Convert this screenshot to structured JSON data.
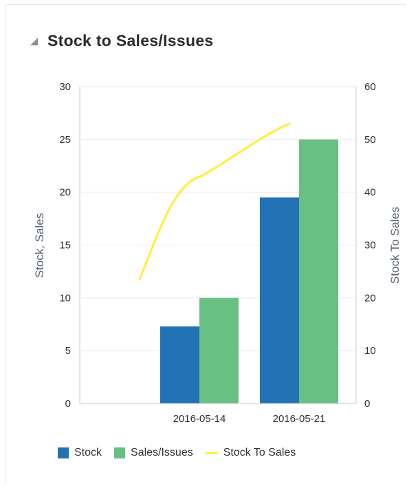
{
  "panel": {
    "title": "Stock to Sales/Issues"
  },
  "colors": {
    "stock": "#2272b5",
    "sales": "#68c082",
    "ratio": "#ffef3c",
    "grid": "#e3e6ea",
    "axis": "#c6cbd1"
  },
  "icons": {
    "collapse": "collapse-triangle-icon"
  },
  "chart_data": {
    "type": "bar",
    "title": "Stock to Sales/Issues",
    "categories": [
      "",
      "2016-05-14",
      "2016-05-21"
    ],
    "series": [
      {
        "name": "Stock",
        "axis": "left",
        "type": "bar",
        "values": [
          null,
          7.3,
          19.5
        ]
      },
      {
        "name": "Sales/Issues",
        "axis": "left",
        "type": "bar",
        "values": [
          null,
          10,
          25
        ]
      },
      {
        "name": "Stock To Sales",
        "axis": "right",
        "type": "line",
        "values": [
          23.5,
          43,
          53
        ]
      }
    ],
    "ylabel": "Stock, Sales",
    "y2label": "Stock To Sales",
    "ylim": [
      0,
      30
    ],
    "y2lim": [
      0,
      60
    ],
    "yticks": [
      "0",
      "5",
      "10",
      "15",
      "20",
      "25",
      "30"
    ],
    "y2ticks": [
      "0",
      "10",
      "20",
      "30",
      "40",
      "50",
      "60"
    ],
    "grid": true,
    "legend": "bottom"
  }
}
